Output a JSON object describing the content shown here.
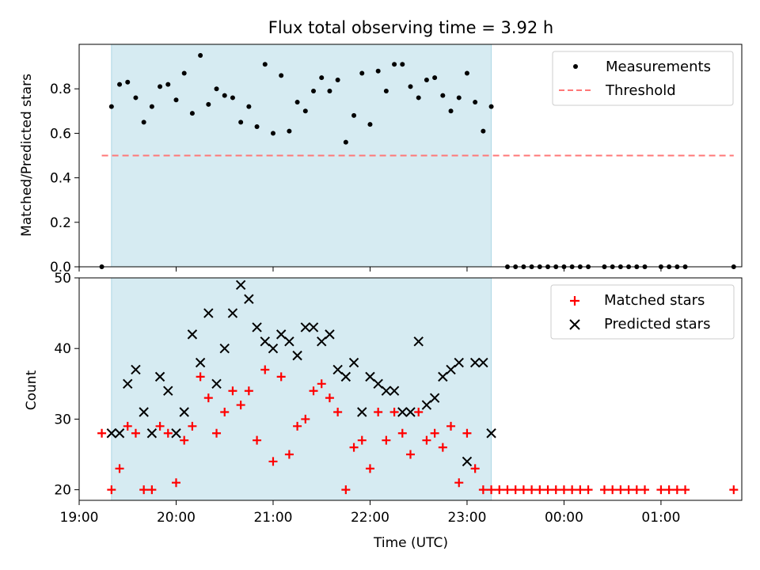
{
  "colors": {
    "shade": "#add8e6",
    "matched": "#ff0000",
    "predicted": "#000000",
    "threshold": "#ff7777",
    "measurements": "#000000"
  },
  "chart_data": [
    {
      "type": "scatter",
      "title": "Flux total observing time = 3.92 h",
      "xlabel": "",
      "ylabel": "Matched/Predicted stars",
      "xlim": [
        "19:00",
        "01:50"
      ],
      "ylim": [
        0,
        1.0
      ],
      "yticks": [
        "0.0",
        "0.2",
        "0.4",
        "0.6",
        "0.8"
      ],
      "grid": false,
      "legend_position": "top-right",
      "shaded_interval": [
        "19:20",
        "23:15"
      ],
      "series": [
        {
          "name": "Measurements",
          "marker": "dot",
          "x": [
            "19:14",
            "19:20",
            "19:25",
            "19:30",
            "19:35",
            "19:40",
            "19:45",
            "19:50",
            "19:55",
            "20:00",
            "20:05",
            "20:10",
            "20:15",
            "20:20",
            "20:25",
            "20:30",
            "20:35",
            "20:40",
            "20:45",
            "20:50",
            "20:55",
            "21:00",
            "21:05",
            "21:10",
            "21:15",
            "21:20",
            "21:25",
            "21:30",
            "21:35",
            "21:40",
            "21:45",
            "21:50",
            "21:55",
            "22:00",
            "22:05",
            "22:10",
            "22:15",
            "22:20",
            "22:25",
            "22:30",
            "22:35",
            "22:40",
            "22:45",
            "22:50",
            "22:55",
            "23:00",
            "23:05",
            "23:10",
            "23:15",
            "23:20",
            "23:25",
            "23:30",
            "23:35",
            "23:40",
            "23:45",
            "23:50",
            "23:55",
            "00:00",
            "00:05",
            "00:10",
            "00:15",
            "00:20",
            "00:25",
            "00:30",
            "00:35",
            "00:40",
            "00:45",
            "00:50",
            "00:55",
            "01:00",
            "01:05",
            "01:10",
            "01:15",
            "01:20",
            "01:25",
            "01:30",
            "01:35",
            "01:40",
            "01:45"
          ],
          "y": [
            0.0,
            0.72,
            0.82,
            0.83,
            0.76,
            0.65,
            0.72,
            0.81,
            0.82,
            0.75,
            0.87,
            0.69,
            0.95,
            0.73,
            0.8,
            0.77,
            0.76,
            0.65,
            0.72,
            0.63,
            0.91,
            0.6,
            0.86,
            0.61,
            0.74,
            0.7,
            0.79,
            0.85,
            0.79,
            0.84,
            0.56,
            0.68,
            0.87,
            0.64,
            0.88,
            0.79,
            0.91,
            0.91,
            0.81,
            0.76,
            0.84,
            0.85,
            0.77,
            0.7,
            0.76,
            0.87,
            0.74,
            0.61,
            0.72,
            null,
            0.0,
            0.0,
            0.0,
            0.0,
            0.0,
            0.0,
            0.0,
            0.0,
            0.0,
            0.0,
            0.0,
            null,
            0.0,
            0.0,
            0.0,
            0.0,
            0.0,
            0.0,
            null,
            0.0,
            0.0,
            0.0,
            0.0,
            null,
            null,
            null,
            null,
            null,
            0.0
          ]
        },
        {
          "name": "Threshold",
          "style": "dashed",
          "x": [
            "19:14",
            "01:45"
          ],
          "y": [
            0.5,
            0.5
          ]
        }
      ]
    },
    {
      "type": "scatter",
      "title": "",
      "xlabel": "Time (UTC)",
      "ylabel": "Count",
      "xlim": [
        "19:00",
        "01:50"
      ],
      "ylim": [
        18.5,
        50
      ],
      "yticks": [
        "20",
        "30",
        "40",
        "50"
      ],
      "xticks": [
        "19:00",
        "20:00",
        "21:00",
        "22:00",
        "23:00",
        "00:00",
        "01:00"
      ],
      "grid": false,
      "legend_position": "top-right",
      "shaded_interval": [
        "19:20",
        "23:15"
      ],
      "series": [
        {
          "name": "Matched stars",
          "marker": "plus",
          "x": [
            "19:14",
            "19:20",
            "19:25",
            "19:30",
            "19:35",
            "19:40",
            "19:45",
            "19:50",
            "19:55",
            "20:00",
            "20:05",
            "20:10",
            "20:15",
            "20:20",
            "20:25",
            "20:30",
            "20:35",
            "20:40",
            "20:45",
            "20:50",
            "20:55",
            "21:00",
            "21:05",
            "21:10",
            "21:15",
            "21:20",
            "21:25",
            "21:30",
            "21:35",
            "21:40",
            "21:45",
            "21:50",
            "21:55",
            "22:00",
            "22:05",
            "22:10",
            "22:15",
            "22:20",
            "22:25",
            "22:30",
            "22:35",
            "22:40",
            "22:45",
            "22:50",
            "22:55",
            "23:00",
            "23:05",
            "23:10",
            "23:15",
            "23:20",
            "23:25",
            "23:30",
            "23:35",
            "23:40",
            "23:45",
            "23:50",
            "23:55",
            "00:00",
            "00:05",
            "00:10",
            "00:15",
            "00:20",
            "00:25",
            "00:30",
            "00:35",
            "00:40",
            "00:45",
            "00:50",
            "00:55",
            "01:00",
            "01:05",
            "01:10",
            "01:15",
            "01:20",
            "01:25",
            "01:30",
            "01:35",
            "01:40",
            "01:45"
          ],
          "y": [
            28,
            20,
            23,
            29,
            28,
            20,
            20,
            29,
            28,
            21,
            27,
            29,
            36,
            33,
            28,
            31,
            34,
            32,
            34,
            27,
            37,
            24,
            36,
            25,
            29,
            30,
            34,
            35,
            33,
            31,
            20,
            26,
            27,
            23,
            31,
            27,
            31,
            28,
            25,
            31,
            27,
            28,
            26,
            29,
            21,
            28,
            23,
            20,
            20,
            20,
            20,
            20,
            20,
            20,
            20,
            20,
            20,
            20,
            20,
            20,
            20,
            null,
            20,
            20,
            20,
            20,
            20,
            20,
            null,
            20,
            20,
            20,
            20,
            null,
            null,
            null,
            null,
            null,
            20
          ]
        },
        {
          "name": "Predicted stars",
          "marker": "x",
          "x": [
            "19:20",
            "19:25",
            "19:30",
            "19:35",
            "19:40",
            "19:45",
            "19:50",
            "19:55",
            "20:00",
            "20:05",
            "20:10",
            "20:15",
            "20:20",
            "20:25",
            "20:30",
            "20:35",
            "20:40",
            "20:45",
            "20:50",
            "20:55",
            "21:00",
            "21:05",
            "21:10",
            "21:15",
            "21:20",
            "21:25",
            "21:30",
            "21:35",
            "21:40",
            "21:45",
            "21:50",
            "21:55",
            "22:00",
            "22:05",
            "22:10",
            "22:15",
            "22:20",
            "22:25",
            "22:30",
            "22:35",
            "22:40",
            "22:45",
            "22:50",
            "22:55",
            "23:00",
            "23:05",
            "23:10",
            "23:15"
          ],
          "y": [
            28,
            28,
            35,
            37,
            31,
            28,
            36,
            34,
            28,
            31,
            42,
            38,
            45,
            35,
            40,
            45,
            49,
            47,
            43,
            41,
            40,
            42,
            41,
            39,
            43,
            43,
            41,
            42,
            37,
            36,
            38,
            31,
            36,
            35,
            34,
            34,
            31,
            31,
            41,
            32,
            33,
            36,
            37,
            38,
            24,
            38,
            38,
            28
          ]
        }
      ]
    }
  ]
}
